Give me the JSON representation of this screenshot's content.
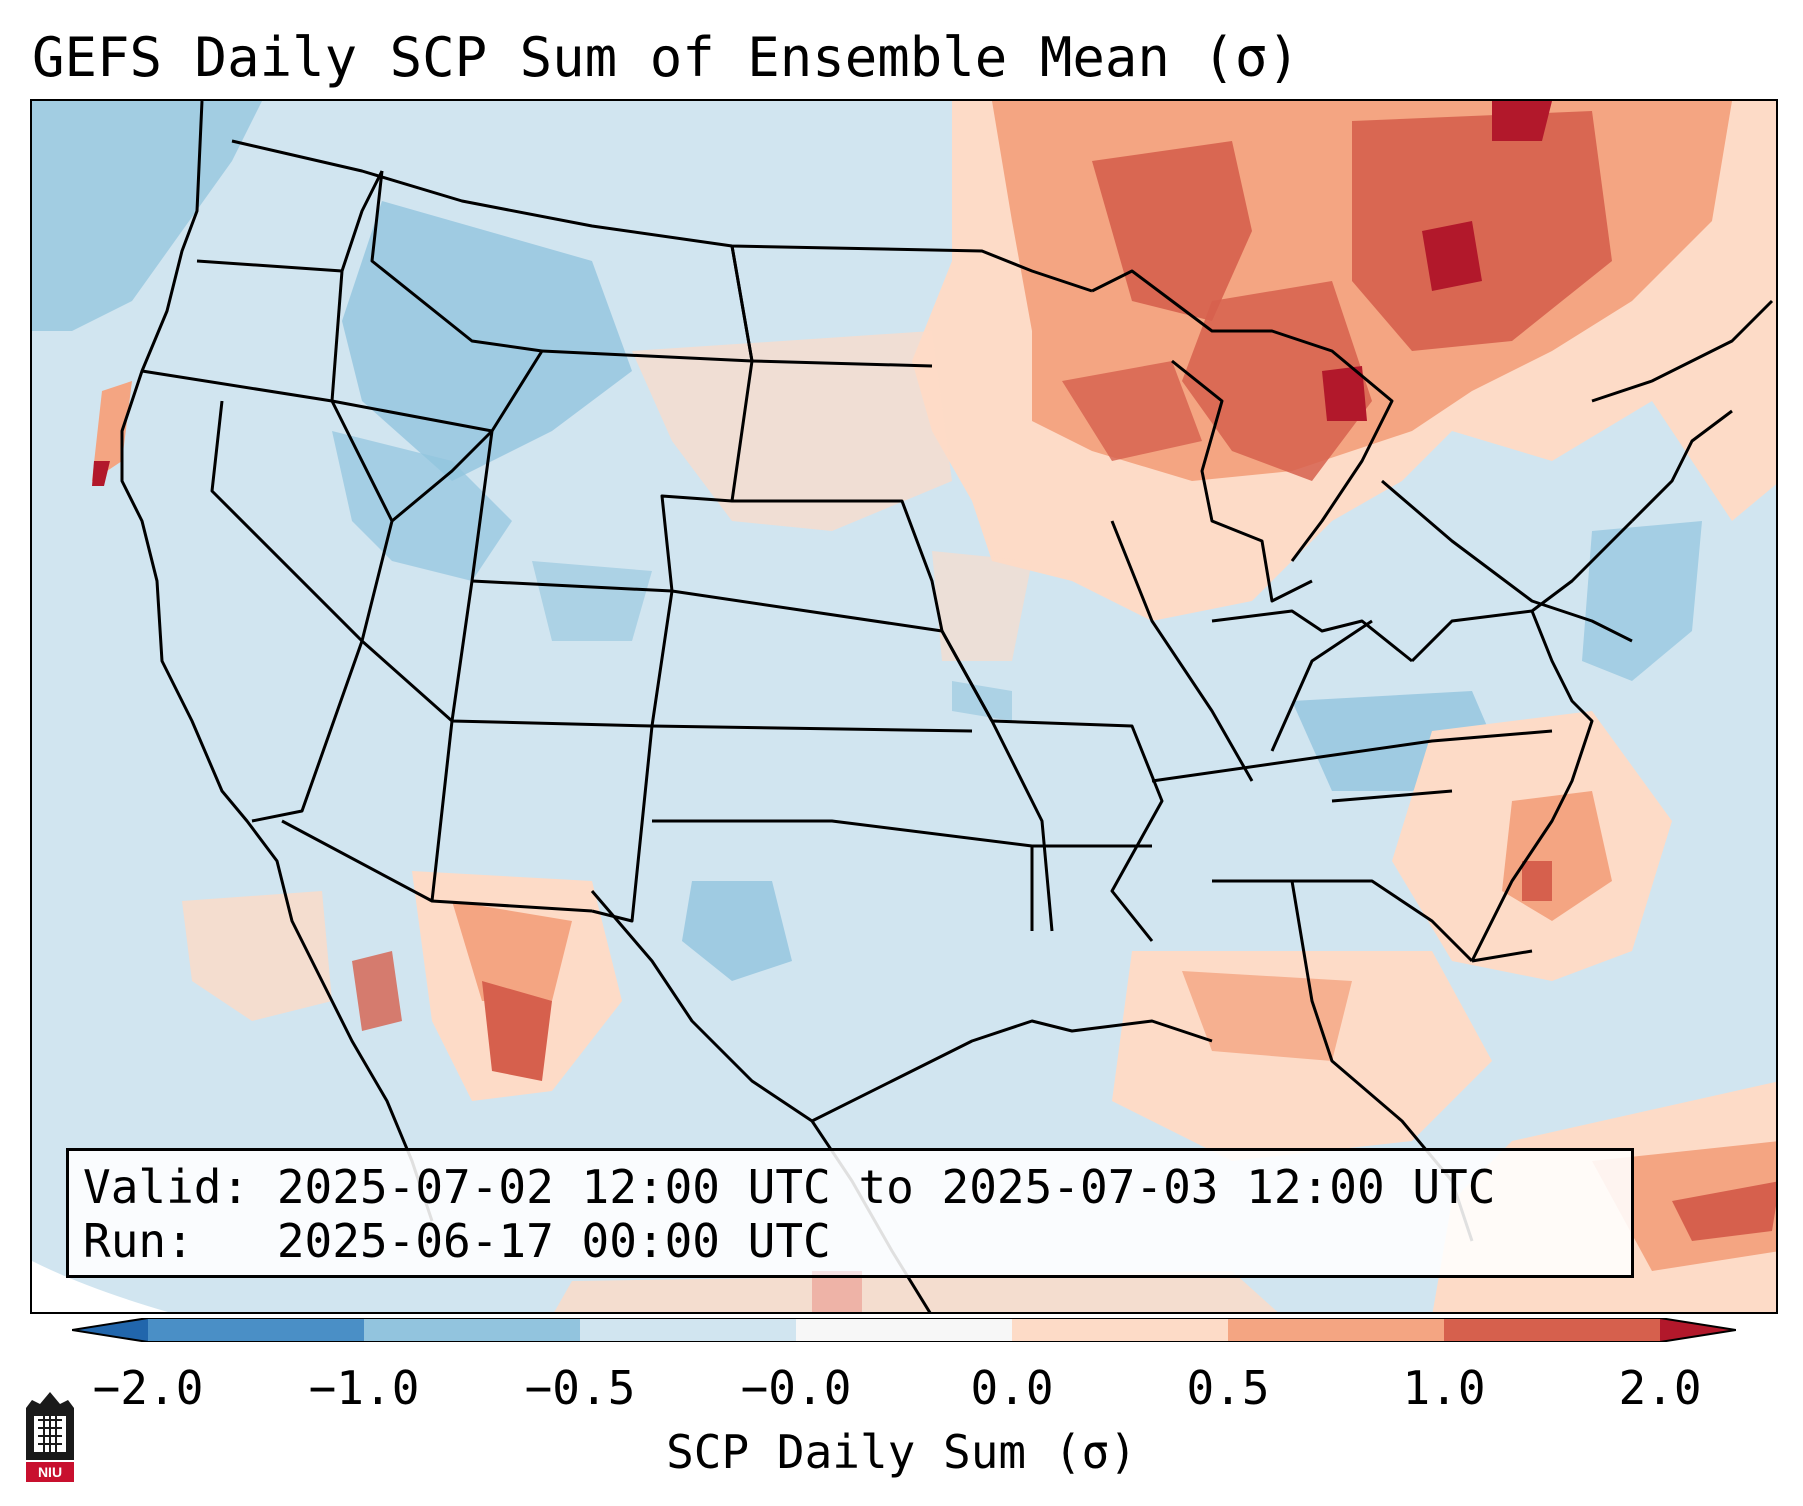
{
  "title": "GEFS Daily SCP Sum of Ensemble Mean (σ)",
  "info": {
    "valid_line": "Valid: 2025-07-02 12:00 UTC to 2025-07-03 12:00 UTC",
    "run_line": "Run:   2025-06-17 00:00 UTC"
  },
  "colorbar": {
    "label": "SCP Daily Sum (σ)",
    "ticks": [
      "−2.0",
      "−1.0",
      "−0.5",
      "−0.0",
      "0.0",
      "0.5",
      "1.0",
      "2.0"
    ],
    "colors": [
      "#4a8fc6",
      "#92c4de",
      "#d1e5f0",
      "#f7f7f7",
      "#fddbc7",
      "#f4a582",
      "#d6604d"
    ],
    "under_color": "#2166ac",
    "over_color": "#b2182b"
  },
  "logo": {
    "text": "NIU"
  }
}
